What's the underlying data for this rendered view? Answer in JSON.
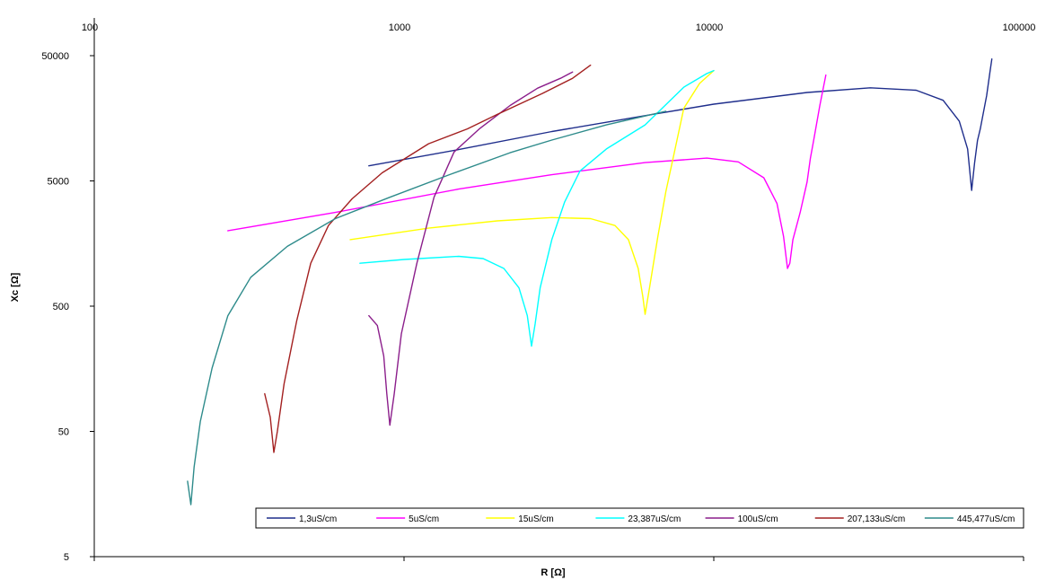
{
  "chart_data": {
    "type": "line",
    "title": "",
    "xlabel": "R [Ω]",
    "ylabel": "Xc [Ω]",
    "x_scale": "log",
    "y_scale": "log",
    "xlim": [
      100,
      100000
    ],
    "ylim": [
      5,
      100000
    ],
    "x_ticks": [
      100,
      1000,
      10000,
      100000
    ],
    "x_tick_labels": [
      "100",
      "1000",
      "10000",
      "100000"
    ],
    "y_ticks": [
      5,
      50,
      500,
      5000,
      50000
    ],
    "y_tick_labels": [
      "5",
      "50",
      "500",
      "5000",
      "50000"
    ],
    "x_axis_position": "top",
    "grid": false,
    "legend_position": "bottom-right",
    "series": [
      {
        "name": "1,3uS/cm",
        "color": "#1F2E8C",
        "x": [
          770,
          1500,
          3000,
          6000,
          10000,
          20000,
          32000,
          45000,
          55000,
          62000,
          66000,
          68000,
          69500,
          71000,
          72500,
          74000,
          76000,
          78000,
          79000
        ],
        "y": [
          6600,
          8900,
          12400,
          16600,
          20500,
          25400,
          27700,
          26500,
          22000,
          15000,
          9000,
          4200,
          7000,
          10500,
          13000,
          17000,
          24000,
          38000,
          47000
        ]
      },
      {
        "name": "5uS/cm",
        "color": "#FF00FF",
        "x": [
          270,
          600,
          1500,
          3000,
          6000,
          9500,
          12000,
          14500,
          16000,
          16800,
          17300,
          17600,
          18000,
          19000,
          20000,
          20500,
          21000,
          22000,
          23000
        ],
        "y": [
          2000,
          2800,
          4300,
          5600,
          7000,
          7600,
          7100,
          5300,
          3300,
          1800,
          1000,
          1100,
          1700,
          2800,
          4900,
          7600,
          10500,
          20000,
          35000
        ]
      },
      {
        "name": "15uS/cm",
        "color": "#FFFF00",
        "x": [
          670,
          1200,
          2000,
          3000,
          4000,
          4800,
          5300,
          5700,
          5900,
          6000,
          6200,
          6600,
          7000,
          7500,
          8000,
          9000,
          10000
        ],
        "y": [
          1700,
          2100,
          2400,
          2550,
          2500,
          2200,
          1700,
          1000,
          600,
          430,
          700,
          1800,
          4100,
          9000,
          19000,
          30000,
          38000
        ]
      },
      {
        "name": "23,387uS/cm",
        "color": "#00FFFF",
        "x": [
          720,
          1000,
          1500,
          1800,
          2100,
          2350,
          2500,
          2580,
          2650,
          2750,
          3000,
          3300,
          3700,
          4500,
          6000,
          8000,
          9500,
          10000
        ],
        "y": [
          1100,
          1180,
          1250,
          1200,
          1000,
          700,
          420,
          240,
          360,
          700,
          1700,
          3400,
          6000,
          9000,
          14000,
          28000,
          36000,
          38000
        ]
      },
      {
        "name": "100uS/cm",
        "color": "#8B1E8B",
        "x": [
          770,
          820,
          860,
          880,
          900,
          930,
          980,
          1100,
          1250,
          1450,
          1750,
          2200,
          2700,
          3200,
          3500
        ],
        "y": [
          420,
          350,
          200,
          100,
          56,
          100,
          300,
          1100,
          3700,
          8500,
          13000,
          20000,
          27500,
          33000,
          37000
        ]
      },
      {
        "name": "207,133uS/cm",
        "color": "#A32020",
        "x": [
          355,
          370,
          380,
          390,
          410,
          450,
          500,
          570,
          680,
          850,
          1200,
          1600,
          2000,
          2800,
          3500,
          4000
        ],
        "y": [
          100,
          65,
          34,
          50,
          120,
          380,
          1100,
          2200,
          3600,
          5800,
          9900,
          13000,
          17000,
          25000,
          33000,
          42000
        ]
      },
      {
        "name": "445,477uS/cm",
        "color": "#2E8B8B",
        "x": [
          200,
          205,
          210,
          220,
          240,
          270,
          320,
          420,
          600,
          900,
          1400,
          2200,
          3000,
          4500,
          7000
        ],
        "y": [
          20,
          13,
          26,
          60,
          160,
          420,
          850,
          1500,
          2500,
          3700,
          5600,
          8400,
          10600,
          14000,
          18000
        ]
      }
    ]
  }
}
